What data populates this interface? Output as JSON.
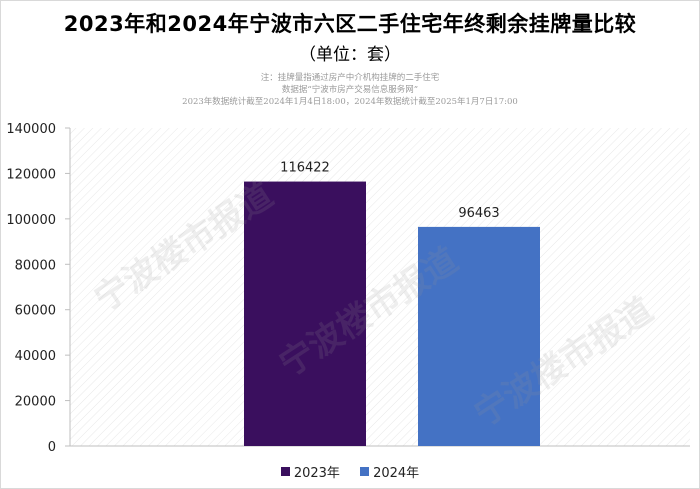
{
  "title": "2023年和2024年宁波市六区二手住宅年终剩余挂牌量比较",
  "unit": "（单位：套）",
  "notes": [
    "注：挂牌量指通过房产中介机构挂牌的二手住宅",
    "数据据“宁波市房产交易信息服务网”",
    "2023年数据统计截至2024年1月4日18:00，2024年数据统计截至2025年1月7日17:00"
  ],
  "watermark": "宁波楼市报道",
  "chart_data": {
    "type": "bar",
    "categories": [
      ""
    ],
    "series": [
      {
        "name": "2023年",
        "values": [
          116422
        ],
        "color": "#3a0f5e"
      },
      {
        "name": "2024年",
        "values": [
          96463
        ],
        "color": "#4472c4"
      }
    ],
    "ylim": [
      0,
      140000
    ],
    "yticks": [
      0,
      20000,
      40000,
      60000,
      80000,
      100000,
      120000,
      140000
    ],
    "grid": "diagonal-hatch",
    "legend": "bottom-center"
  }
}
